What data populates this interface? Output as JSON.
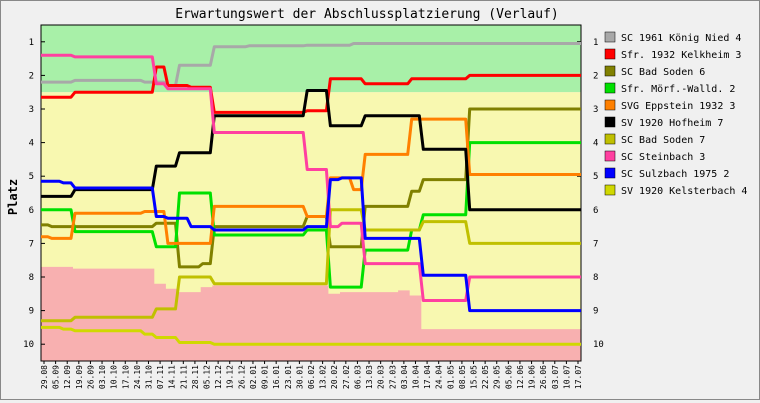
{
  "chart_data": {
    "type": "line",
    "title": "Erwartungswert der Abschlussplatzierung (Verlauf)",
    "ylabel": "Platz",
    "xlabel": "",
    "ylim": [
      1,
      10
    ],
    "y_ticks": [
      "1",
      "2",
      "3",
      "4",
      "5",
      "6",
      "7",
      "8",
      "9",
      "10"
    ],
    "y_inverted": true,
    "grid": false,
    "legend_position": "right",
    "x": [
      "29.08",
      "05.09",
      "12.09",
      "19.09",
      "26.09",
      "03.10",
      "10.10",
      "17.10",
      "24.10",
      "31.10",
      "07.11",
      "14.11",
      "21.11",
      "28.11",
      "05.12",
      "12.12",
      "19.12",
      "26.12",
      "02.01",
      "09.01",
      "16.01",
      "23.01",
      "30.01",
      "06.02",
      "13.02",
      "20.02",
      "27.02",
      "06.03",
      "13.03",
      "20.03",
      "27.03",
      "03.04",
      "10.04",
      "17.04",
      "24.04",
      "01.05",
      "08.05",
      "15.05",
      "22.05",
      "29.05",
      "05.06",
      "12.06",
      "19.06",
      "26.06",
      "03.07",
      "10.07",
      "17.07"
    ],
    "zones": [
      {
        "name": "promotion",
        "color": "#a8f0a8",
        "from": 0.5,
        "to": 2.5
      },
      {
        "name": "middle",
        "color": "#f8f8b0",
        "from": 2.5,
        "to": "variable"
      },
      {
        "name": "relegation",
        "color": "#f8b0b0",
        "from": "variable",
        "to": 10.5
      }
    ],
    "relegation_boundary": [
      7.7,
      7.7,
      7.7,
      7.75,
      7.75,
      7.75,
      7.75,
      7.75,
      7.75,
      7.75,
      8.2,
      8.35,
      8.45,
      8.45,
      8.3,
      8.25,
      8.25,
      8.25,
      8.25,
      8.25,
      8.25,
      8.25,
      8.25,
      8.25,
      8.25,
      8.5,
      8.45,
      8.45,
      8.45,
      8.45,
      8.45,
      8.4,
      8.55,
      9.55,
      9.55,
      9.55,
      9.55,
      9.55,
      9.55,
      9.55,
      9.55,
      9.55,
      9.55,
      9.55,
      9.55,
      9.55,
      9.55
    ],
    "series": [
      {
        "name": "SC 1961 König Nied 4",
        "color": "#a8a8a8",
        "values": [
          2.2,
          2.2,
          2.2,
          2.15,
          2.15,
          2.15,
          2.15,
          2.15,
          2.15,
          2.2,
          2.2,
          2.3,
          1.7,
          1.7,
          1.7,
          1.15,
          1.15,
          1.15,
          1.12,
          1.12,
          1.12,
          1.12,
          1.12,
          1.1,
          1.1,
          1.1,
          1.1,
          1.05,
          1.05,
          1.05,
          1.05,
          1.05,
          1.05,
          1.05,
          1.05,
          1.05,
          1.05,
          1.05,
          1.05,
          1.05,
          1.05,
          1.05,
          1.05,
          1.05,
          1.05,
          1.05,
          1.05
        ]
      },
      {
        "name": "Sfr. 1932 Kelkheim 3",
        "color": "#ff0000",
        "values": [
          2.65,
          2.65,
          2.65,
          2.5,
          2.5,
          2.5,
          2.5,
          2.5,
          2.5,
          2.5,
          1.75,
          2.3,
          2.3,
          2.35,
          2.35,
          3.1,
          3.1,
          3.1,
          3.1,
          3.1,
          3.1,
          3.1,
          3.1,
          3.05,
          3.05,
          2.1,
          2.1,
          2.1,
          2.25,
          2.25,
          2.25,
          2.25,
          2.1,
          2.1,
          2.1,
          2.1,
          2.1,
          2.0,
          2.0,
          2.0,
          2.0,
          2.0,
          2.0,
          2.0,
          2.0,
          2.0,
          2.0
        ]
      },
      {
        "name": "SC Bad Soden 6",
        "color": "#808000",
        "values": [
          6.45,
          6.5,
          6.5,
          6.5,
          6.5,
          6.5,
          6.5,
          6.5,
          6.5,
          6.5,
          6.4,
          6.4,
          7.7,
          7.7,
          7.6,
          6.5,
          6.5,
          6.5,
          6.5,
          6.5,
          6.5,
          6.5,
          6.5,
          6.2,
          6.2,
          7.1,
          7.1,
          7.1,
          5.9,
          5.9,
          5.9,
          5.9,
          5.45,
          5.1,
          5.1,
          5.1,
          5.1,
          3.0,
          3.0,
          3.0,
          3.0,
          3.0,
          3.0,
          3.0,
          3.0,
          3.0,
          3.0
        ]
      },
      {
        "name": "Sfr. Mörf.-Walld. 2",
        "color": "#00e000",
        "values": [
          6.0,
          6.0,
          6.0,
          6.65,
          6.65,
          6.65,
          6.65,
          6.65,
          6.65,
          6.65,
          7.1,
          7.1,
          5.5,
          5.5,
          5.5,
          6.75,
          6.75,
          6.75,
          6.75,
          6.75,
          6.75,
          6.75,
          6.75,
          6.6,
          6.6,
          8.3,
          8.3,
          8.3,
          7.2,
          7.2,
          7.2,
          7.2,
          6.6,
          6.15,
          6.15,
          6.15,
          6.15,
          4.0,
          4.0,
          4.0,
          4.0,
          4.0,
          4.0,
          4.0,
          4.0,
          4.0,
          4.0
        ]
      },
      {
        "name": "SVG Eppstein 1932 3",
        "color": "#ff8000",
        "values": [
          6.8,
          6.85,
          6.85,
          6.1,
          6.1,
          6.1,
          6.1,
          6.1,
          6.1,
          6.05,
          6.05,
          7.0,
          7.0,
          7.0,
          7.0,
          5.9,
          5.9,
          5.9,
          5.9,
          5.9,
          5.9,
          5.9,
          5.9,
          6.2,
          6.2,
          5.05,
          5.05,
          5.4,
          4.35,
          4.35,
          4.35,
          4.35,
          3.3,
          3.3,
          3.3,
          3.3,
          3.3,
          4.95,
          4.95,
          4.95,
          4.95,
          4.95,
          4.95,
          4.95,
          4.95,
          4.95,
          4.95
        ]
      },
      {
        "name": "SV 1920 Hofheim 7",
        "color": "#000000",
        "values": [
          5.6,
          5.6,
          5.6,
          5.4,
          5.4,
          5.4,
          5.4,
          5.4,
          5.4,
          5.4,
          4.7,
          4.7,
          4.3,
          4.3,
          4.3,
          3.2,
          3.2,
          3.2,
          3.2,
          3.2,
          3.2,
          3.2,
          3.2,
          2.45,
          2.45,
          3.5,
          3.5,
          3.5,
          3.2,
          3.2,
          3.2,
          3.2,
          3.2,
          4.2,
          4.2,
          4.2,
          4.2,
          6.0,
          6.0,
          6.0,
          6.0,
          6.0,
          6.0,
          6.0,
          6.0,
          6.0,
          6.0
        ]
      },
      {
        "name": "SC Bad Soden 7",
        "color": "#c0c000",
        "values": [
          9.3,
          9.3,
          9.3,
          9.2,
          9.2,
          9.2,
          9.2,
          9.2,
          9.2,
          9.2,
          8.95,
          8.95,
          8.0,
          8.0,
          8.0,
          8.2,
          8.2,
          8.2,
          8.2,
          8.2,
          8.2,
          8.2,
          8.2,
          8.2,
          8.2,
          6.0,
          6.0,
          6.0,
          6.6,
          6.6,
          6.6,
          6.6,
          6.6,
          6.35,
          6.35,
          6.35,
          6.35,
          7.0,
          7.0,
          7.0,
          7.0,
          7.0,
          7.0,
          7.0,
          7.0,
          7.0,
          7.0
        ]
      },
      {
        "name": "SC Steinbach 3",
        "color": "#ff40a0",
        "values": [
          1.4,
          1.4,
          1.4,
          1.45,
          1.45,
          1.45,
          1.45,
          1.45,
          1.45,
          1.45,
          2.25,
          2.4,
          2.4,
          2.4,
          2.4,
          3.7,
          3.7,
          3.7,
          3.7,
          3.7,
          3.7,
          3.7,
          3.7,
          4.8,
          4.8,
          6.5,
          6.4,
          6.4,
          7.6,
          7.6,
          7.6,
          7.6,
          7.6,
          8.7,
          8.7,
          8.7,
          8.7,
          8.0,
          8.0,
          8.0,
          8.0,
          8.0,
          8.0,
          8.0,
          8.0,
          8.0,
          8.0
        ]
      },
      {
        "name": "SC Sulzbach 1975 2",
        "color": "#0000ff",
        "values": [
          5.15,
          5.15,
          5.2,
          5.35,
          5.35,
          5.35,
          5.35,
          5.35,
          5.35,
          5.35,
          6.2,
          6.25,
          6.25,
          6.5,
          6.5,
          6.6,
          6.6,
          6.6,
          6.6,
          6.6,
          6.6,
          6.6,
          6.6,
          6.5,
          6.5,
          5.1,
          5.05,
          5.05,
          6.85,
          6.85,
          6.85,
          6.85,
          6.85,
          7.95,
          7.95,
          7.95,
          7.95,
          9.0,
          9.0,
          9.0,
          9.0,
          9.0,
          9.0,
          9.0,
          9.0,
          9.0,
          9.0
        ]
      },
      {
        "name": "SV 1920 Kelsterbach 4",
        "color": "#d0d800",
        "values": [
          9.5,
          9.5,
          9.55,
          9.6,
          9.6,
          9.6,
          9.6,
          9.6,
          9.6,
          9.7,
          9.8,
          9.8,
          9.95,
          9.95,
          9.95,
          10.0,
          10.0,
          10.0,
          10.0,
          10.0,
          10.0,
          10.0,
          10.0,
          10.0,
          10.0,
          10.0,
          10.0,
          10.0,
          10.0,
          10.0,
          10.0,
          10.0,
          10.0,
          10.0,
          10.0,
          10.0,
          10.0,
          10.0,
          10.0,
          10.0,
          10.0,
          10.0,
          10.0,
          10.0,
          10.0,
          10.0,
          10.0
        ]
      }
    ]
  }
}
